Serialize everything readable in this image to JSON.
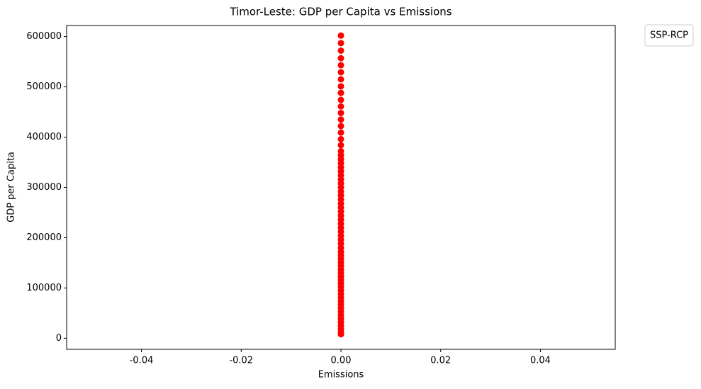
{
  "chart_data": {
    "type": "scatter",
    "title": "Timor-Leste: GDP per Capita vs Emissions",
    "x_label": "Emissions",
    "y_label": "GDP per Capita",
    "legend_title": "SSP-RCP",
    "color": "#ff0000",
    "x": [
      0,
      0,
      0,
      0,
      0,
      0,
      0,
      0,
      0,
      0,
      0,
      0,
      0,
      0,
      0,
      0,
      0,
      0,
      0,
      0,
      0,
      0,
      0,
      0,
      0,
      0,
      0,
      0,
      0,
      0,
      0,
      0,
      0,
      0,
      0,
      0,
      0,
      0,
      0,
      0,
      0,
      0,
      0,
      0,
      0,
      0,
      0,
      0,
      0,
      0,
      0,
      0,
      0,
      0,
      0,
      0,
      0,
      0,
      0,
      0,
      0,
      0,
      0,
      0,
      0,
      0,
      0
    ],
    "values": [
      602000,
      587000,
      572000,
      557000,
      543000,
      529000,
      515000,
      501000,
      488000,
      474000,
      461000,
      448000,
      435000,
      422000,
      409000,
      396000,
      384000,
      372000,
      364000,
      356000,
      348000,
      340000,
      332000,
      324000,
      316000,
      308000,
      300000,
      292000,
      284000,
      276000,
      268000,
      260000,
      252000,
      244000,
      236000,
      228000,
      220000,
      212000,
      204000,
      196000,
      188000,
      180000,
      172000,
      165000,
      158000,
      151000,
      144000,
      137000,
      130000,
      123000,
      116000,
      109000,
      102000,
      95000,
      88000,
      81000,
      74000,
      67000,
      60000,
      53000,
      46000,
      39000,
      32000,
      25000,
      18000,
      12000,
      8000
    ],
    "xlim": [
      -0.055,
      0.055
    ],
    "xticks": [
      -0.04,
      -0.02,
      {
        "value": 0,
        "label": "0.00"
      },
      0.02,
      0.04
    ],
    "ylim": [
      -22000,
      622000
    ],
    "yticks": [
      0,
      100000,
      200000,
      300000,
      400000,
      500000,
      600000
    ]
  }
}
